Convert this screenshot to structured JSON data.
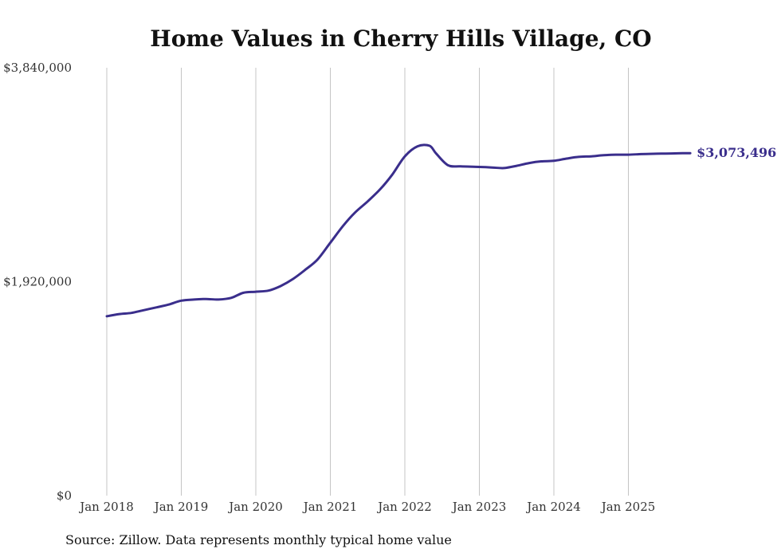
{
  "chart_data": {
    "type": "line",
    "title": "Home Values in Cherry Hills Village, CO",
    "xlabel": "",
    "ylabel": "",
    "ylim": [
      0,
      3840000
    ],
    "yticks": [
      {
        "value": 0,
        "label": "$0"
      },
      {
        "value": 1920000,
        "label": "$1,920,000"
      },
      {
        "value": 3840000,
        "label": "$3,840,000"
      }
    ],
    "xlim": [
      2018.0,
      2026.0
    ],
    "xticks": [
      {
        "value": 2018,
        "label": "Jan 2018"
      },
      {
        "value": 2019,
        "label": "Jan 2019"
      },
      {
        "value": 2020,
        "label": "Jan 2020"
      },
      {
        "value": 2021,
        "label": "Jan 2021"
      },
      {
        "value": 2022,
        "label": "Jan 2022"
      },
      {
        "value": 2023,
        "label": "Jan 2023"
      },
      {
        "value": 2024,
        "label": "Jan 2024"
      },
      {
        "value": 2025,
        "label": "Jan 2025"
      }
    ],
    "grid": "vertical",
    "series": [
      {
        "name": "Typical home value",
        "color": "#3a2e8c",
        "x": [
          2018.0,
          2018.17,
          2018.33,
          2018.5,
          2018.67,
          2018.83,
          2019.0,
          2019.17,
          2019.33,
          2019.5,
          2019.67,
          2019.83,
          2020.0,
          2020.17,
          2020.33,
          2020.5,
          2020.67,
          2020.83,
          2021.0,
          2021.17,
          2021.33,
          2021.5,
          2021.67,
          2021.83,
          2022.0,
          2022.17,
          2022.33,
          2022.42,
          2022.58,
          2022.75,
          2023.0,
          2023.17,
          2023.33,
          2023.5,
          2023.67,
          2023.83,
          2024.0,
          2024.17,
          2024.33,
          2024.5,
          2024.67,
          2024.83,
          2025.0,
          2025.17,
          2025.33,
          2025.5,
          2025.67,
          2025.83
        ],
        "values": [
          1610000,
          1630000,
          1640000,
          1665000,
          1690000,
          1715000,
          1750000,
          1760000,
          1765000,
          1760000,
          1775000,
          1820000,
          1830000,
          1840000,
          1880000,
          1945000,
          2030000,
          2120000,
          2270000,
          2420000,
          2540000,
          2640000,
          2750000,
          2880000,
          3045000,
          3135000,
          3140000,
          3070000,
          2965000,
          2955000,
          2950000,
          2945000,
          2940000,
          2960000,
          2985000,
          3000000,
          3005000,
          3025000,
          3040000,
          3045000,
          3055000,
          3060000,
          3060000,
          3065000,
          3068000,
          3070000,
          3072000,
          3073496
        ]
      }
    ],
    "end_label": "$3,073,496",
    "source": "Source: Zillow. Data represents monthly typical home value"
  }
}
